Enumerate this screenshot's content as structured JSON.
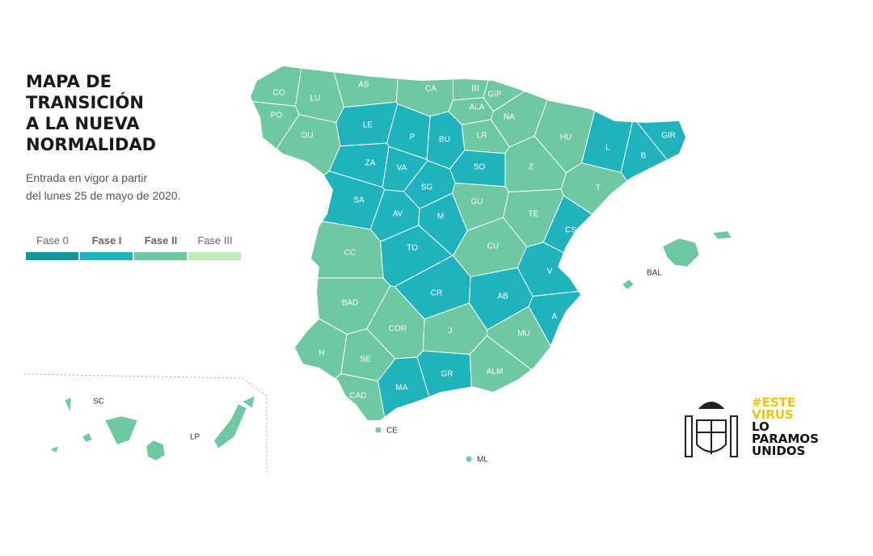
{
  "title": [
    "MAPA DE",
    "TRANSICIÓN",
    "A LA NUEVA",
    "NORMALIDAD"
  ],
  "subtitle": [
    "Entrada en vigor a partir",
    "del lunes 25 de mayo de 2020."
  ],
  "legend": [
    {
      "label": "Fase 0",
      "color": "#13979c"
    },
    {
      "label": "Fase I",
      "color": "#1fb4bd"
    },
    {
      "label": "Fase II",
      "color": "#6ec8a2"
    },
    {
      "label": "Fase III",
      "color": "#c3ecb8"
    }
  ],
  "provinces": [
    {
      "label": "CO",
      "color": "#6ec8a2"
    },
    {
      "label": "LU",
      "color": "#6ec8a2"
    },
    {
      "label": "PO",
      "color": "#6ec8a2"
    },
    {
      "label": "OU",
      "color": "#6ec8a2"
    },
    {
      "label": "AS",
      "color": "#6ec8a2"
    },
    {
      "label": "CA",
      "color": "#6ec8a2"
    },
    {
      "label": "BI",
      "color": "#6ec8a2"
    },
    {
      "label": "GIP",
      "color": "#6ec8a2"
    },
    {
      "label": "ALA",
      "color": "#6ec8a2"
    },
    {
      "label": "NA",
      "color": "#6ec8a2"
    },
    {
      "label": "LR",
      "color": "#6ec8a2"
    },
    {
      "label": "LE",
      "color": "#1fb4bd"
    },
    {
      "label": "P",
      "color": "#1fb4bd"
    },
    {
      "label": "BU",
      "color": "#1fb4bd"
    },
    {
      "label": "HU",
      "color": "#6ec8a2"
    },
    {
      "label": "L",
      "color": "#1fb4bd"
    },
    {
      "label": "GIR",
      "color": "#1fb4bd"
    },
    {
      "label": "B",
      "color": "#1fb4bd"
    },
    {
      "label": "T",
      "color": "#6ec8a2"
    },
    {
      "label": "ZA",
      "color": "#1fb4bd"
    },
    {
      "label": "VA",
      "color": "#1fb4bd"
    },
    {
      "label": "SO",
      "color": "#1fb4bd"
    },
    {
      "label": "Z",
      "color": "#6ec8a2"
    },
    {
      "label": "SG",
      "color": "#1fb4bd"
    },
    {
      "label": "SA",
      "color": "#1fb4bd"
    },
    {
      "label": "AV",
      "color": "#1fb4bd"
    },
    {
      "label": "M",
      "color": "#1fb4bd"
    },
    {
      "label": "GU",
      "color": "#6ec8a2"
    },
    {
      "label": "TE",
      "color": "#6ec8a2"
    },
    {
      "label": "CS",
      "color": "#1fb4bd"
    },
    {
      "label": "CC",
      "color": "#6ec8a2"
    },
    {
      "label": "TO",
      "color": "#1fb4bd"
    },
    {
      "label": "CU",
      "color": "#6ec8a2"
    },
    {
      "label": "V",
      "color": "#1fb4bd"
    },
    {
      "label": "CR",
      "color": "#1fb4bd"
    },
    {
      "label": "AB",
      "color": "#1fb4bd"
    },
    {
      "label": "A",
      "color": "#1fb4bd"
    },
    {
      "label": "BAD",
      "color": "#6ec8a2"
    },
    {
      "label": "COR",
      "color": "#6ec8a2"
    },
    {
      "label": "J",
      "color": "#6ec8a2"
    },
    {
      "label": "MU",
      "color": "#6ec8a2"
    },
    {
      "label": "H",
      "color": "#6ec8a2"
    },
    {
      "label": "SE",
      "color": "#6ec8a2"
    },
    {
      "label": "GR",
      "color": "#1fb4bd"
    },
    {
      "label": "ALM",
      "color": "#6ec8a2"
    },
    {
      "label": "MA",
      "color": "#1fb4bd"
    },
    {
      "label": "CAD",
      "color": "#6ec8a2"
    }
  ],
  "islands": [
    {
      "label": "BAL",
      "color": "#6ec8a2"
    },
    {
      "label": "SC",
      "color": "#6ec8a2"
    },
    {
      "label": "LP",
      "color": "#6ec8a2"
    }
  ],
  "cities": [
    {
      "label": "CE",
      "color": "#6ec8a2"
    },
    {
      "label": "ML",
      "color": "#6ec8a2"
    }
  ],
  "logo": {
    "hashtag": [
      "#ESTE",
      "VIRUS"
    ],
    "slogan": [
      "LO",
      "PARAMOS",
      "UNIDOS"
    ]
  }
}
